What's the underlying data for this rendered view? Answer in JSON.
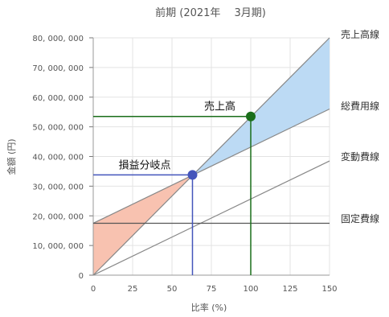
{
  "chart_data": {
    "type": "line",
    "title": "前期 (2021年　 3月期)",
    "xlabel": "比率 (%)",
    "ylabel": "金額 (円)",
    "xlim": [
      0,
      150
    ],
    "ylim": [
      0,
      80000000
    ],
    "x_ticks": [
      0,
      25,
      50,
      75,
      100,
      125,
      150
    ],
    "x_tick_labels": [
      "0",
      "25",
      "50",
      "75",
      "100",
      "125",
      "150"
    ],
    "y_ticks": [
      0,
      10000000,
      20000000,
      30000000,
      40000000,
      50000000,
      60000000,
      70000000,
      80000000
    ],
    "y_tick_labels": [
      "0",
      "10, 000, 000",
      "20, 000, 000",
      "30, 000, 000",
      "40, 000, 000",
      "50, 000, 000",
      "60, 000, 000",
      "70, 000, 000",
      "80, 000, 000"
    ],
    "grid": true,
    "series": [
      {
        "name": "売上高線",
        "x": [
          0,
          150
        ],
        "y": [
          0,
          80000000
        ],
        "color": "#888888"
      },
      {
        "name": "総費用線",
        "x": [
          0,
          150
        ],
        "y": [
          17500000,
          56000000
        ],
        "color": "#888888"
      },
      {
        "name": "変動費線",
        "x": [
          0,
          150
        ],
        "y": [
          0,
          38500000
        ],
        "color": "#888888"
      },
      {
        "name": "固定費線",
        "x": [
          0,
          150
        ],
        "y": [
          17500000,
          17500000
        ],
        "color": "#555555"
      }
    ],
    "points": [
      {
        "label": "損益分岐点",
        "x": 63,
        "y": 33800000,
        "color": "#4455bb"
      },
      {
        "label": "売上高",
        "x": 100,
        "y": 53500000,
        "color": "#1a6e1a"
      }
    ],
    "loss_area_color": "#f8c2b0",
    "profit_area_color": "#bcdaf4"
  }
}
